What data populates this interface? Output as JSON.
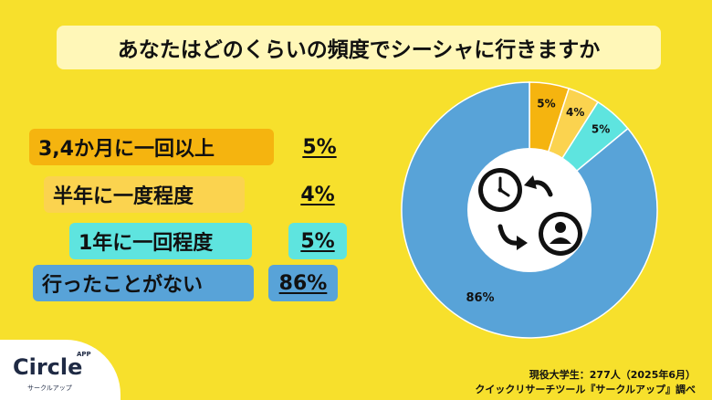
{
  "title": "あなたはどのくらいの頻度でシーシャに行きますか",
  "chart_data": {
    "type": "pie",
    "title": "あなたはどのくらいの頻度でシーシャに行きますか",
    "categories": [
      "3,4か月に一回以上",
      "半年に一度程度",
      "1年に一回程度",
      "行ったことがない"
    ],
    "values": [
      5,
      4,
      5,
      86
    ],
    "value_labels": [
      "5%",
      "4%",
      "5%",
      "86%"
    ],
    "colors": [
      "#f5b40f",
      "#fbd34f",
      "#5ee4df",
      "#58a3d8"
    ]
  },
  "legend": [
    {
      "label": "3,4か月に一回以上",
      "value": "5%"
    },
    {
      "label": "半年に一度程度",
      "value": "4%"
    },
    {
      "label": "1年に一回程度",
      "value": "5%"
    },
    {
      "label": "行ったことがない",
      "value": "86%"
    }
  ],
  "center_icons": [
    "clock-icon",
    "arrow-icon",
    "arrow-icon",
    "person-icon"
  ],
  "logo": {
    "main": "Circle",
    "badge": "APP",
    "sub": "サークルアップ"
  },
  "source": {
    "line1": "現役大学生：277人（2025年6月）",
    "line2": "クイックリサーチツール『サークルアップ』調べ"
  }
}
